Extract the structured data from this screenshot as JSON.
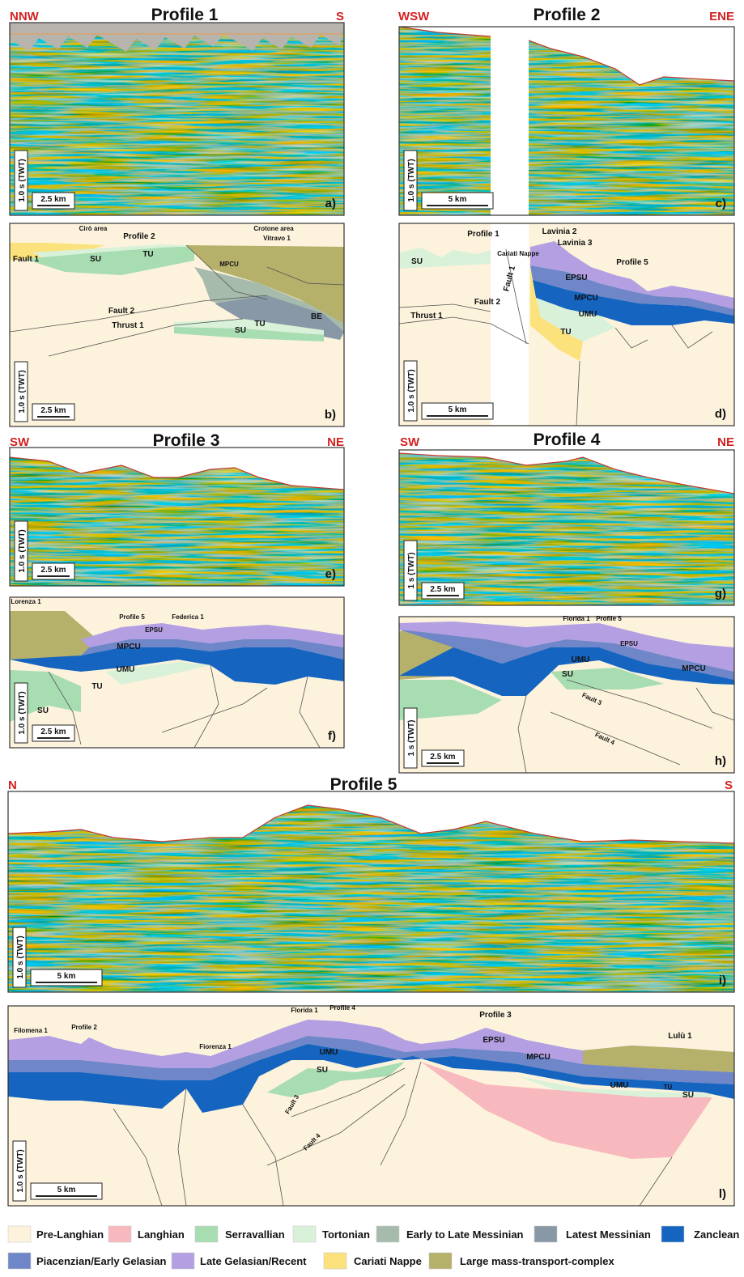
{
  "profiles": [
    {
      "title": "Profile 1",
      "left": "NNW",
      "right": "S",
      "seismic": {
        "time_scale": "1.0 s (TWT)",
        "distance_scale": "2.5 km",
        "panel": "a)"
      },
      "interpretation": {
        "time_scale": "1.0 s (TWT)",
        "distance_scale": "2.5 km",
        "panel": "b)",
        "labels": [
          "Cirò area",
          "Crotone area",
          "Profile 2",
          "Vitravo 1",
          "Fault 1",
          "SU",
          "TU",
          "MPCU",
          "Fault 2",
          "Thrust 1",
          "BE",
          "SU",
          "TU"
        ]
      }
    },
    {
      "title": "Profile 2",
      "left": "WSW",
      "right": "ENE",
      "seismic": {
        "time_scale": "1.0 s (TWT)",
        "distance_scale": "5 km",
        "panel": "c)"
      },
      "interpretation": {
        "time_scale": "1.0 s (TWT)",
        "distance_scale": "5 km",
        "panel": "d)",
        "labels": [
          "Profile 1",
          "Lavinia 2",
          "Lavinia 3",
          "Cariati Nappe",
          "Fault 1",
          "Profile 5",
          "SU",
          "EPSU",
          "MPCU",
          "UMU",
          "Fault 2",
          "Thrust 1",
          "TU"
        ]
      }
    },
    {
      "title": "Profile 3",
      "left": "SW",
      "right": "NE",
      "seismic": {
        "time_scale": "1.0 s (TWT)",
        "distance_scale": "2.5 km",
        "panel": "e)"
      },
      "interpretation": {
        "time_scale": "1.0 s (TWT)",
        "distance_scale": "2.5 km",
        "panel": "f)",
        "labels": [
          "Lorenza 1",
          "Profile 5",
          "Federica 1",
          "EPSU",
          "MPCU",
          "UMU",
          "TU",
          "SU"
        ]
      }
    },
    {
      "title": "Profile 4",
      "left": "SW",
      "right": "NE",
      "seismic": {
        "time_scale": "1 s (TWT)",
        "distance_scale": "2.5 km",
        "panel": "g)"
      },
      "interpretation": {
        "time_scale": "1 s (TWT)",
        "distance_scale": "2.5 km",
        "panel": "h)",
        "labels": [
          "Florida 1",
          "Profile 5",
          "EPSU",
          "UMU",
          "SU",
          "MPCU",
          "Fault 3",
          "Fault 4"
        ]
      }
    },
    {
      "title": "Profile 5",
      "left": "N",
      "right": "S",
      "seismic": {
        "time_scale": "1.0 s (TWT)",
        "distance_scale": "5 km",
        "panel": "i)"
      },
      "interpretation": {
        "time_scale": "1.0 s (TWT)",
        "distance_scale": "5 km",
        "panel": "l)",
        "labels": [
          "Filomena 1",
          "Profile 2",
          "Fiorenza 1",
          "Florida 1",
          "Profile 4",
          "Profile 3",
          "Lulù 1",
          "EPSU",
          "MPCU",
          "UMU",
          "SU",
          "Fault 3",
          "Fault 4",
          "UMU",
          "TU",
          "SU"
        ]
      }
    }
  ],
  "legend": [
    {
      "label": "Pre-Langhian",
      "color": "#fdf3dc"
    },
    {
      "label": "Langhian",
      "color": "#f8b9be"
    },
    {
      "label": "Serravallian",
      "color": "#a8ddb2"
    },
    {
      "label": "Tortonian",
      "color": "#d9f1d9"
    },
    {
      "label": "Early to Late Messinian",
      "color": "#a7bbac"
    },
    {
      "label": "Latest Messinian",
      "color": "#8898a6"
    },
    {
      "label": "Zanclean",
      "color": "#1565c0"
    },
    {
      "label": "Piacenzian/Early Gelasian",
      "color": "#6f86c8"
    },
    {
      "label": "Late Gelasian/Recent",
      "color": "#b39fe2"
    },
    {
      "label": "Cariati Nappe",
      "color": "#fbe27c"
    },
    {
      "label": "Large mass-transport-complex",
      "color": "#b5b06a"
    }
  ]
}
